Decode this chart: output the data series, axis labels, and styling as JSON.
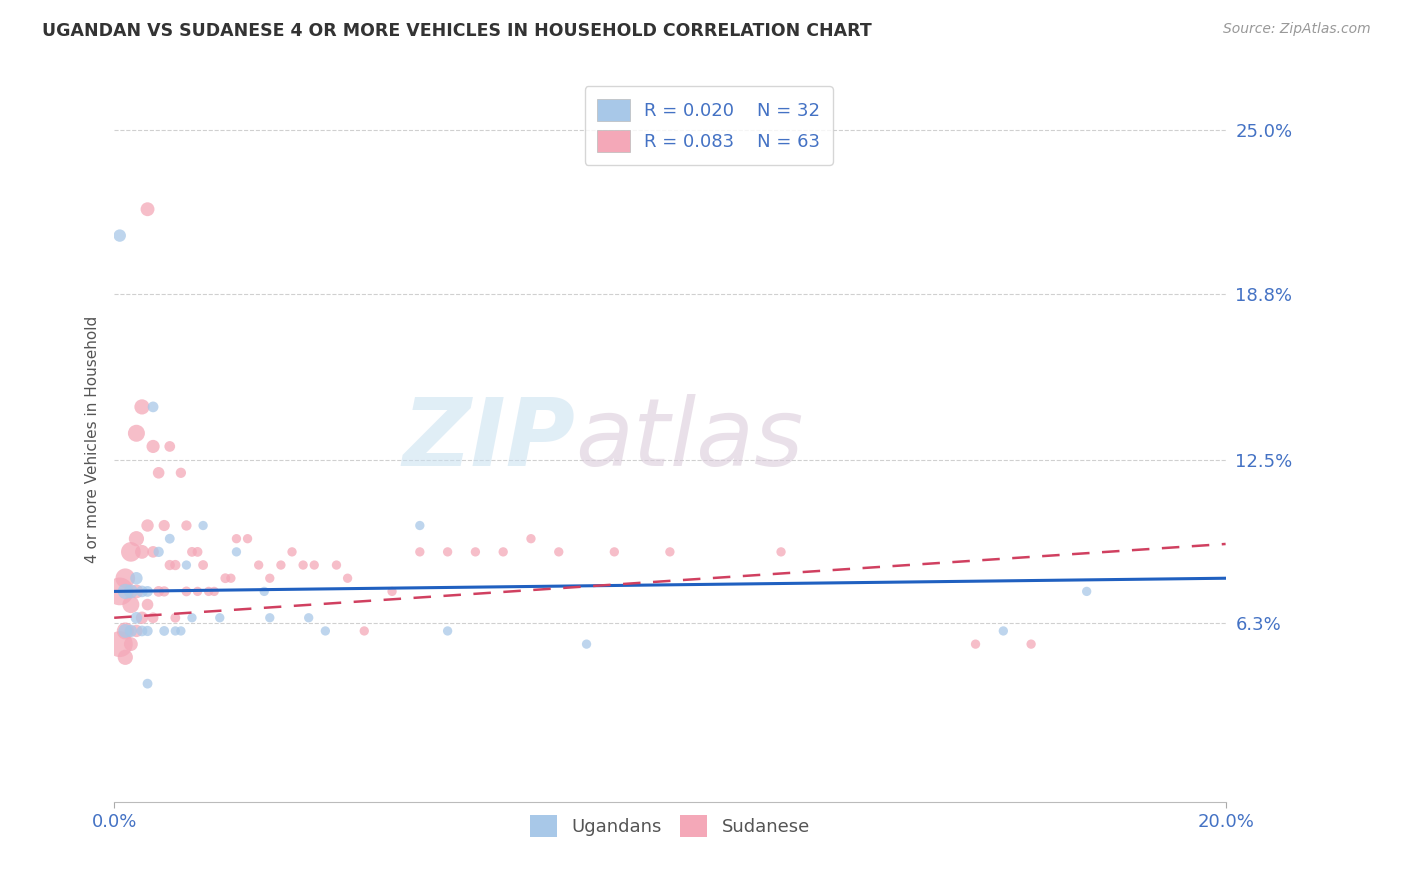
{
  "title": "UGANDAN VS SUDANESE 4 OR MORE VEHICLES IN HOUSEHOLD CORRELATION CHART",
  "source": "Source: ZipAtlas.com",
  "xlim": [
    0.0,
    0.2
  ],
  "ylim": [
    -0.005,
    0.27
  ],
  "ylabel": "4 or more Vehicles in Household",
  "ugandan_label": "Ugandans",
  "sudanese_label": "Sudanese",
  "ugandan_R": "0.020",
  "ugandan_N": "32",
  "sudanese_R": "0.083",
  "sudanese_N": "63",
  "ugandan_color": "#a8c8e8",
  "sudanese_color": "#f4a8b8",
  "ugandan_line_color": "#2060c0",
  "sudanese_line_color": "#d04060",
  "background_color": "#ffffff",
  "watermark_zip": "ZIP",
  "watermark_atlas": "atlas",
  "y_tick_vals": [
    0.063,
    0.125,
    0.188,
    0.25
  ],
  "y_tick_labels": [
    "6.3%",
    "12.5%",
    "18.8%",
    "25.0%"
  ],
  "ugandan_x": [
    0.001,
    0.002,
    0.002,
    0.003,
    0.003,
    0.004,
    0.004,
    0.005,
    0.005,
    0.006,
    0.006,
    0.006,
    0.007,
    0.008,
    0.009,
    0.01,
    0.011,
    0.012,
    0.013,
    0.014,
    0.016,
    0.019,
    0.022,
    0.027,
    0.028,
    0.035,
    0.038,
    0.055,
    0.06,
    0.085,
    0.16,
    0.175
  ],
  "ugandan_y": [
    0.21,
    0.075,
    0.06,
    0.075,
    0.06,
    0.08,
    0.065,
    0.075,
    0.06,
    0.075,
    0.06,
    0.04,
    0.145,
    0.09,
    0.06,
    0.095,
    0.06,
    0.06,
    0.085,
    0.065,
    0.1,
    0.065,
    0.09,
    0.075,
    0.065,
    0.065,
    0.06,
    0.1,
    0.06,
    0.055,
    0.06,
    0.075
  ],
  "ugandan_sizes": [
    80,
    120,
    100,
    100,
    80,
    80,
    70,
    70,
    60,
    60,
    55,
    50,
    60,
    55,
    50,
    50,
    45,
    45,
    45,
    45,
    45,
    45,
    45,
    45,
    45,
    45,
    45,
    45,
    45,
    45,
    45,
    45
  ],
  "sudanese_x": [
    0.001,
    0.001,
    0.002,
    0.002,
    0.002,
    0.003,
    0.003,
    0.003,
    0.004,
    0.004,
    0.004,
    0.004,
    0.005,
    0.005,
    0.005,
    0.006,
    0.006,
    0.006,
    0.007,
    0.007,
    0.007,
    0.008,
    0.008,
    0.009,
    0.009,
    0.01,
    0.01,
    0.011,
    0.011,
    0.012,
    0.013,
    0.013,
    0.014,
    0.015,
    0.015,
    0.016,
    0.017,
    0.018,
    0.02,
    0.021,
    0.022,
    0.024,
    0.026,
    0.028,
    0.03,
    0.032,
    0.034,
    0.036,
    0.04,
    0.042,
    0.045,
    0.05,
    0.055,
    0.06,
    0.065,
    0.07,
    0.075,
    0.08,
    0.09,
    0.1,
    0.12,
    0.155,
    0.165
  ],
  "sudanese_y": [
    0.075,
    0.055,
    0.08,
    0.06,
    0.05,
    0.09,
    0.07,
    0.055,
    0.135,
    0.095,
    0.075,
    0.06,
    0.145,
    0.09,
    0.065,
    0.22,
    0.1,
    0.07,
    0.13,
    0.09,
    0.065,
    0.12,
    0.075,
    0.1,
    0.075,
    0.13,
    0.085,
    0.085,
    0.065,
    0.12,
    0.1,
    0.075,
    0.09,
    0.09,
    0.075,
    0.085,
    0.075,
    0.075,
    0.08,
    0.08,
    0.095,
    0.095,
    0.085,
    0.08,
    0.085,
    0.09,
    0.085,
    0.085,
    0.085,
    0.08,
    0.06,
    0.075,
    0.09,
    0.09,
    0.09,
    0.09,
    0.095,
    0.09,
    0.09,
    0.09,
    0.09,
    0.055,
    0.055
  ],
  "sudanese_sizes": [
    400,
    350,
    200,
    150,
    120,
    200,
    150,
    100,
    150,
    120,
    100,
    80,
    120,
    100,
    80,
    100,
    80,
    70,
    90,
    70,
    60,
    70,
    60,
    65,
    55,
    60,
    55,
    55,
    50,
    55,
    55,
    50,
    50,
    50,
    45,
    50,
    45,
    45,
    50,
    45,
    45,
    45,
    45,
    45,
    45,
    45,
    45,
    45,
    45,
    45,
    45,
    45,
    45,
    45,
    45,
    45,
    45,
    45,
    45,
    45,
    45,
    45,
    45
  ],
  "ugandan_trend_x": [
    0.0,
    0.2
  ],
  "ugandan_trend_y": [
    0.075,
    0.08
  ],
  "sudanese_trend_x": [
    0.0,
    0.2
  ],
  "sudanese_trend_y": [
    0.065,
    0.093
  ]
}
